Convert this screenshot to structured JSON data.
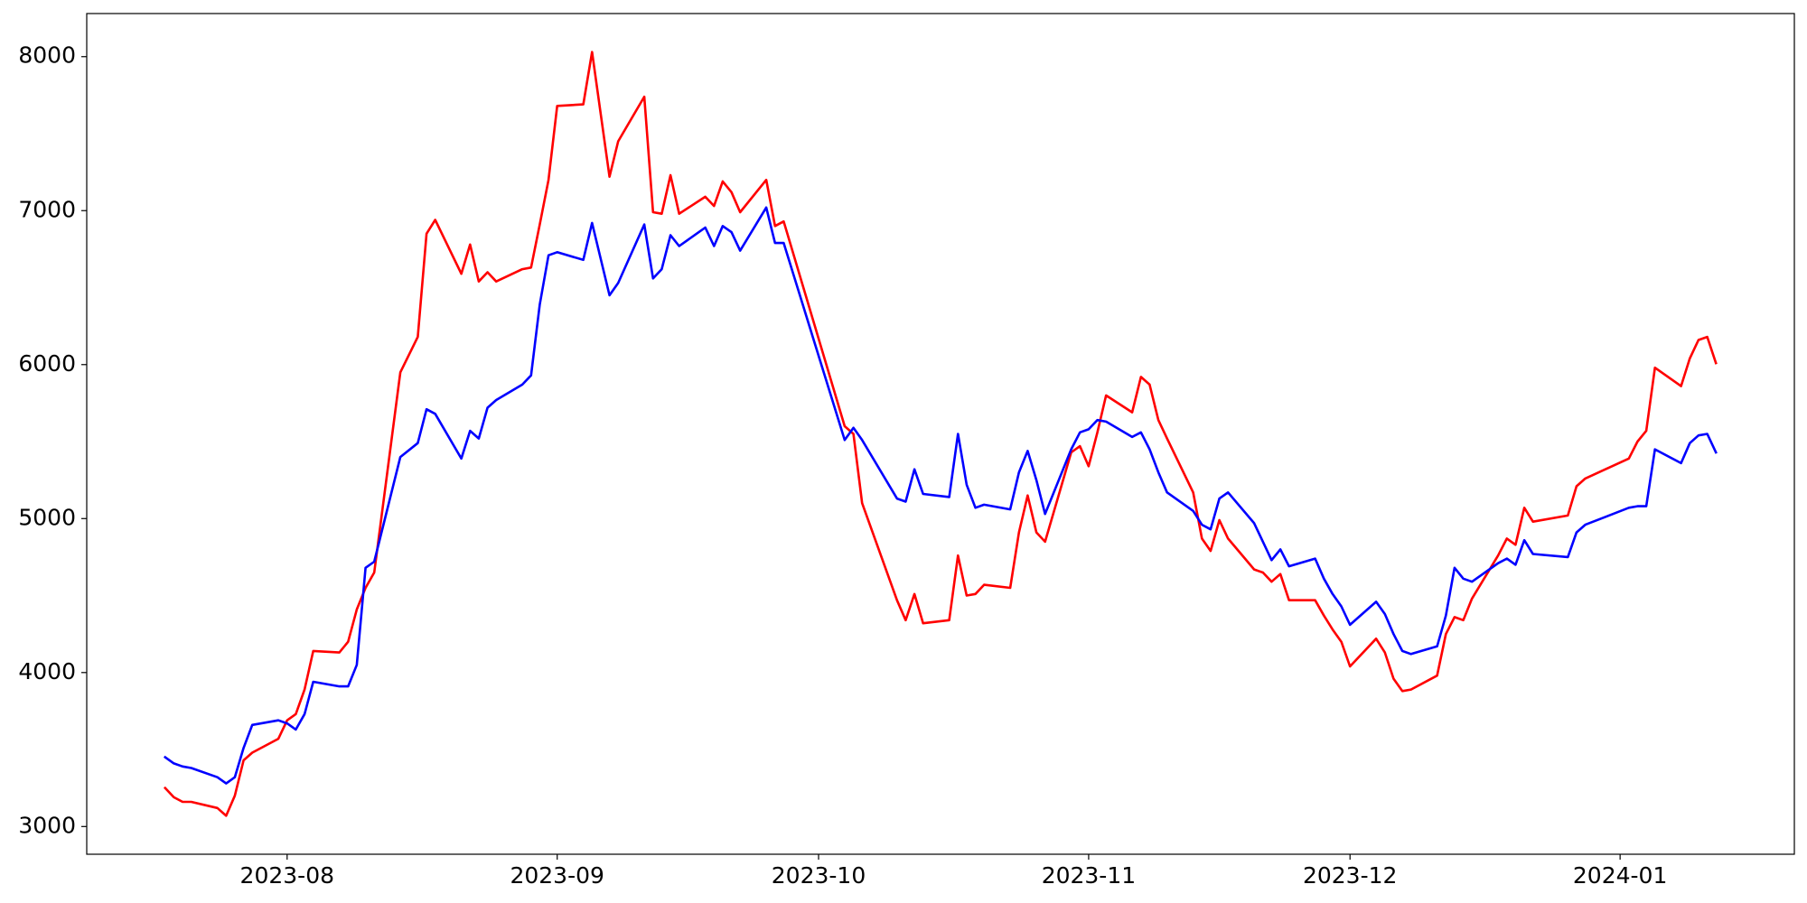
{
  "chart_data": {
    "type": "line",
    "x": [
      "2023-07-18",
      "2023-07-19",
      "2023-07-20",
      "2023-07-21",
      "2023-07-24",
      "2023-07-25",
      "2023-07-26",
      "2023-07-27",
      "2023-07-28",
      "2023-07-31",
      "2023-08-01",
      "2023-08-02",
      "2023-08-03",
      "2023-08-04",
      "2023-08-07",
      "2023-08-08",
      "2023-08-09",
      "2023-08-10",
      "2023-08-11",
      "2023-08-14",
      "2023-08-16",
      "2023-08-17",
      "2023-08-18",
      "2023-08-21",
      "2023-08-22",
      "2023-08-23",
      "2023-08-24",
      "2023-08-25",
      "2023-08-28",
      "2023-08-29",
      "2023-08-30",
      "2023-08-31",
      "2023-09-01",
      "2023-09-04",
      "2023-09-05",
      "2023-09-07",
      "2023-09-08",
      "2023-09-11",
      "2023-09-12",
      "2023-09-13",
      "2023-09-14",
      "2023-09-15",
      "2023-09-18",
      "2023-09-19",
      "2023-09-20",
      "2023-09-21",
      "2023-09-22",
      "2023-09-25",
      "2023-09-26",
      "2023-09-27",
      "2023-10-04",
      "2023-10-05",
      "2023-10-06",
      "2023-10-10",
      "2023-10-11",
      "2023-10-12",
      "2023-10-13",
      "2023-10-16",
      "2023-10-17",
      "2023-10-18",
      "2023-10-19",
      "2023-10-20",
      "2023-10-23",
      "2023-10-24",
      "2023-10-25",
      "2023-10-26",
      "2023-10-27",
      "2023-10-30",
      "2023-10-31",
      "2023-11-01",
      "2023-11-02",
      "2023-11-03",
      "2023-11-06",
      "2023-11-07",
      "2023-11-08",
      "2023-11-09",
      "2023-11-10",
      "2023-11-13",
      "2023-11-14",
      "2023-11-15",
      "2023-11-16",
      "2023-11-17",
      "2023-11-20",
      "2023-11-21",
      "2023-11-22",
      "2023-11-23",
      "2023-11-24",
      "2023-11-27",
      "2023-11-28",
      "2023-11-29",
      "2023-11-30",
      "2023-12-01",
      "2023-12-04",
      "2023-12-05",
      "2023-12-06",
      "2023-12-07",
      "2023-12-08",
      "2023-12-11",
      "2023-12-12",
      "2023-12-13",
      "2023-12-14",
      "2023-12-15",
      "2023-12-18",
      "2023-12-19",
      "2023-12-20",
      "2023-12-21",
      "2023-12-22",
      "2023-12-26",
      "2023-12-27",
      "2023-12-28",
      "2024-01-02",
      "2024-01-03",
      "2024-01-04",
      "2024-01-05",
      "2024-01-08",
      "2024-01-09",
      "2024-01-10",
      "2024-01-11",
      "2024-01-12"
    ],
    "series": [
      {
        "color": "#ff0000",
        "values": [
          3250,
          3190,
          3160,
          3160,
          3120,
          3070,
          3200,
          3430,
          3480,
          3570,
          3690,
          3730,
          3890,
          4140,
          4130,
          4200,
          4410,
          4550,
          4650,
          5950,
          6180,
          6850,
          6940,
          6590,
          6780,
          6540,
          6600,
          6540,
          6620,
          6630,
          6910,
          7200,
          7680,
          7690,
          8030,
          7220,
          7450,
          7740,
          6990,
          6980,
          7230,
          6980,
          7090,
          7030,
          7190,
          7120,
          6990,
          7200,
          6900,
          6930,
          5600,
          5550,
          5100,
          4470,
          4340,
          4510,
          4320,
          4340,
          4760,
          4500,
          4510,
          4570,
          4550,
          4910,
          5150,
          4910,
          4850,
          5430,
          5470,
          5340,
          5560,
          5800,
          5690,
          5920,
          5870,
          5640,
          5520,
          5170,
          4870,
          4790,
          4990,
          4870,
          4670,
          4650,
          4590,
          4640,
          4470,
          4470,
          4370,
          4280,
          4200,
          4040,
          4220,
          4130,
          3960,
          3880,
          3890,
          3980,
          4250,
          4360,
          4340,
          4480,
          4760,
          4870,
          4830,
          5070,
          4980,
          5020,
          5210,
          5260,
          5390,
          5500,
          5570,
          5980,
          5860,
          6040,
          6160,
          6180,
          6010
        ]
      },
      {
        "color": "#0000ff",
        "values": [
          3450,
          3410,
          3390,
          3380,
          3320,
          3280,
          3320,
          3510,
          3660,
          3690,
          3670,
          3630,
          3730,
          3940,
          3910,
          3910,
          4050,
          4680,
          4720,
          5400,
          5490,
          5710,
          5680,
          5390,
          5570,
          5520,
          5720,
          5770,
          5870,
          5930,
          6390,
          6710,
          6730,
          6680,
          6920,
          6450,
          6530,
          6910,
          6560,
          6620,
          6840,
          6770,
          6890,
          6770,
          6900,
          6860,
          6740,
          7020,
          6790,
          6790,
          5510,
          5590,
          5510,
          5130,
          5110,
          5320,
          5160,
          5140,
          5550,
          5220,
          5070,
          5090,
          5060,
          5300,
          5440,
          5250,
          5030,
          5450,
          5560,
          5580,
          5640,
          5630,
          5530,
          5560,
          5450,
          5300,
          5170,
          5050,
          4960,
          4930,
          5130,
          5170,
          4970,
          4850,
          4730,
          4800,
          4690,
          4740,
          4610,
          4510,
          4430,
          4310,
          4460,
          4380,
          4250,
          4140,
          4120,
          4170,
          4370,
          4680,
          4610,
          4590,
          4710,
          4740,
          4700,
          4860,
          4770,
          4750,
          4910,
          4960,
          5070,
          5080,
          5080,
          5450,
          5360,
          5490,
          5540,
          5550,
          5430
        ]
      }
    ],
    "xlim": [
      "2023-07-09",
      "2024-01-21"
    ],
    "xticks": [
      {
        "value": "2023-08-01",
        "label": "2023-08"
      },
      {
        "value": "2023-09-01",
        "label": "2023-09"
      },
      {
        "value": "2023-10-01",
        "label": "2023-10"
      },
      {
        "value": "2023-11-01",
        "label": "2023-11"
      },
      {
        "value": "2023-12-01",
        "label": "2023-12"
      },
      {
        "value": "2024-01-01",
        "label": "2024-01"
      }
    ],
    "ylim": [
      2820,
      8280
    ],
    "yticks": [
      3000,
      4000,
      5000,
      6000,
      7000,
      8000
    ],
    "grid": false
  }
}
